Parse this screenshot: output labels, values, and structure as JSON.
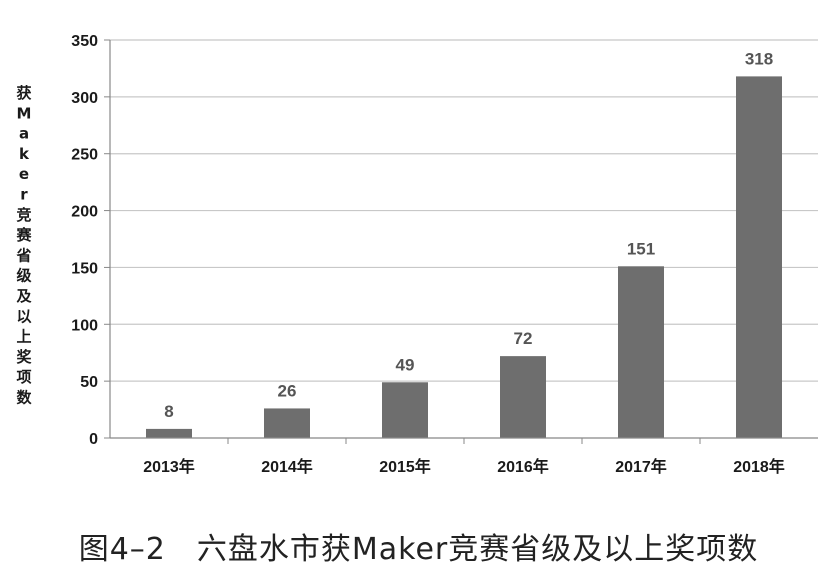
{
  "chart_data": {
    "type": "bar",
    "categories": [
      "2013年",
      "2014年",
      "2015年",
      "2016年",
      "2017年",
      "2018年"
    ],
    "values": [
      8,
      26,
      49,
      72,
      151,
      318
    ],
    "data_labels": [
      "8",
      "26",
      "49",
      "72",
      "151",
      "318"
    ],
    "title": "",
    "xlabel": "",
    "ylabel": "获Maker竞赛省级及以上奖项数",
    "ylim": [
      0,
      350
    ],
    "yticks": [
      "0",
      "50",
      "100",
      "150",
      "200",
      "250",
      "300",
      "350"
    ],
    "grid": true,
    "bar_color": "#6e6e6e",
    "grid_color": "#c8c8c8"
  },
  "caption": "图4–2　六盘水市获Maker竞赛省级及以上奖项数"
}
